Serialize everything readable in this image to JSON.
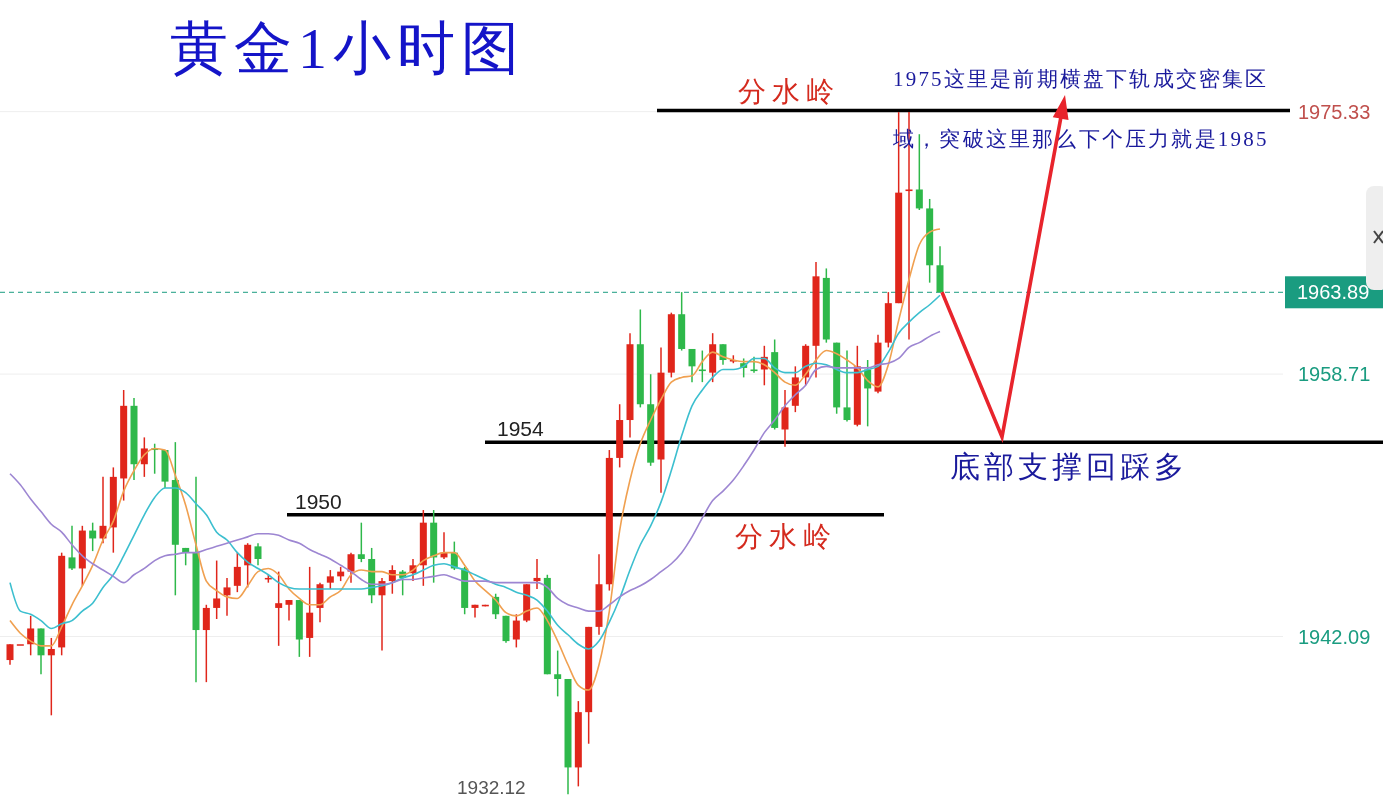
{
  "chart_data": {
    "type": "candlestick",
    "title": "黄金1小时图",
    "categories": [
      null,
      null,
      null,
      null,
      null,
      null,
      null,
      null,
      null,
      null,
      null,
      null,
      null,
      null,
      null,
      null,
      null,
      null,
      null,
      null,
      null,
      null,
      null,
      null,
      null,
      null,
      null,
      null,
      null,
      null,
      null,
      null,
      null,
      null,
      null,
      null,
      null,
      null,
      null,
      null,
      null,
      null,
      null,
      null,
      null,
      null,
      null,
      null,
      null,
      null,
      null,
      null,
      null,
      null,
      null,
      null,
      null,
      null,
      null,
      null,
      null,
      null,
      null,
      null,
      null,
      null,
      null,
      null,
      null,
      null,
      null,
      null,
      null,
      null,
      null,
      null,
      null,
      null,
      null,
      null,
      null,
      null,
      null,
      null,
      null,
      null,
      null,
      null,
      null,
      null,
      null
    ],
    "ohlc": [
      [
        1940.6,
        1941.6,
        1940.3,
        1941.6
      ],
      [
        1941.6,
        1941.6,
        1941.6,
        1941.6
      ],
      [
        1941.6,
        1943.4,
        1940.9,
        1942.6
      ],
      [
        1942.6,
        1942.6,
        1939.7,
        1940.9
      ],
      [
        1940.9,
        1942.0,
        1937.1,
        1941.3
      ],
      [
        1941.4,
        1947.4,
        1940.9,
        1947.2
      ],
      [
        1947.1,
        1949.1,
        1946.3,
        1946.4
      ],
      [
        1946.4,
        1949.1,
        1945.3,
        1948.8
      ],
      [
        1948.8,
        1949.3,
        1947.5,
        1948.3
      ],
      [
        1948.3,
        1952.2,
        1948.0,
        1949.1
      ],
      [
        1949.0,
        1952.8,
        1947.4,
        1952.2
      ],
      [
        1952.1,
        1957.7,
        1950.7,
        1956.7
      ],
      [
        1956.7,
        1957.2,
        1952.0,
        1953.0
      ],
      [
        1953.0,
        1954.7,
        1952.2,
        1954.0
      ],
      [
        1954.0,
        1954.3,
        1952.4,
        1953.9
      ],
      [
        1953.9,
        1953.9,
        1951.5,
        1951.9
      ],
      [
        1952.0,
        1954.4,
        1944.7,
        1947.9
      ],
      [
        1947.7,
        1947.7,
        1946.6,
        1947.4
      ],
      [
        1947.4,
        1952.2,
        1939.2,
        1942.5
      ],
      [
        1942.5,
        1944.1,
        1939.2,
        1943.9
      ],
      [
        1943.9,
        1946.9,
        1943.2,
        1944.5
      ],
      [
        1944.7,
        1945.8,
        1943.4,
        1945.2
      ],
      [
        1945.3,
        1947.4,
        1944.9,
        1946.5
      ],
      [
        1946.6,
        1948.0,
        1945.2,
        1947.9
      ],
      [
        1947.8,
        1948.0,
        1946.6,
        1947.0
      ],
      [
        1945.8,
        1946.0,
        1945.5,
        1945.8
      ],
      [
        1943.9,
        1946.2,
        1941.5,
        1944.2
      ],
      [
        1944.1,
        1944.4,
        1943.1,
        1944.4
      ],
      [
        1944.4,
        1944.4,
        1940.8,
        1941.9
      ],
      [
        1942.0,
        1946.5,
        1940.8,
        1943.6
      ],
      [
        1943.9,
        1945.5,
        1943.0,
        1945.4
      ],
      [
        1945.5,
        1946.3,
        1945.1,
        1945.9
      ],
      [
        1945.9,
        1946.5,
        1945.6,
        1946.2
      ],
      [
        1946.2,
        1947.4,
        1945.5,
        1947.3
      ],
      [
        1947.3,
        1949.3,
        1946.8,
        1947.0
      ],
      [
        1947.0,
        1947.7,
        1944.2,
        1944.7
      ],
      [
        1944.7,
        1945.8,
        1941.2,
        1945.6
      ],
      [
        1945.6,
        1946.6,
        1944.8,
        1946.3
      ],
      [
        1946.2,
        1946.3,
        1944.7,
        1945.8
      ],
      [
        1946.1,
        1947.0,
        1945.6,
        1946.6
      ],
      [
        1946.6,
        1950.1,
        1945.3,
        1949.3
      ],
      [
        1949.3,
        1950.1,
        1945.5,
        1947.1
      ],
      [
        1947.1,
        1948.7,
        1947.0,
        1947.4
      ],
      [
        1947.4,
        1948.1,
        1946.3,
        1946.4
      ],
      [
        1946.4,
        1946.5,
        1943.5,
        1943.9
      ],
      [
        1943.9,
        1944.1,
        1943.3,
        1944.1
      ],
      [
        1944.0,
        1944.1,
        1944.0,
        1944.1
      ],
      [
        1944.6,
        1944.8,
        1943.2,
        1943.5
      ],
      [
        1943.4,
        1943.4,
        1941.7,
        1941.8
      ],
      [
        1941.9,
        1943.5,
        1941.4,
        1943.1
      ],
      [
        1943.1,
        1945.4,
        1943.0,
        1945.4
      ],
      [
        1945.6,
        1947.0,
        1945.1,
        1945.8
      ],
      [
        1945.8,
        1946.0,
        1939.7,
        1939.7
      ],
      [
        1939.7,
        1941.2,
        1938.3,
        1939.4
      ],
      [
        1939.4,
        1939.4,
        1932.1,
        1933.8
      ],
      [
        1933.8,
        1938.0,
        1932.6,
        1937.3
      ],
      [
        1937.3,
        1942.7,
        1935.3,
        1942.7
      ],
      [
        1942.7,
        1947.3,
        1942.2,
        1945.4
      ],
      [
        1945.4,
        1953.9,
        1945.0,
        1953.4
      ],
      [
        1953.4,
        1956.8,
        1952.8,
        1955.8
      ],
      [
        1955.8,
        1961.3,
        1954.7,
        1960.6
      ],
      [
        1960.6,
        1962.8,
        1956.6,
        1956.8
      ],
      [
        1956.8,
        1958.7,
        1952.9,
        1953.1
      ],
      [
        1953.3,
        1960.4,
        1951.2,
        1958.8
      ],
      [
        1958.8,
        1962.6,
        1958.5,
        1962.5
      ],
      [
        1962.5,
        1963.9,
        1960.2,
        1960.3
      ],
      [
        1960.3,
        1960.3,
        1958.2,
        1959.2
      ],
      [
        1959.0,
        1960.2,
        1958.2,
        1958.9
      ],
      [
        1958.8,
        1961.3,
        1958.2,
        1960.6
      ],
      [
        1960.6,
        1960.6,
        1959.3,
        1959.6
      ],
      [
        1959.6,
        1959.9,
        1959.4,
        1959.6
      ],
      [
        1959.4,
        1959.7,
        1958.5,
        1959.1
      ],
      [
        1959.0,
        1959.8,
        1958.8,
        1958.9
      ],
      [
        1959.0,
        1960.5,
        1958.0,
        1959.8
      ],
      [
        1960.1,
        1960.9,
        1955.2,
        1955.3
      ],
      [
        1955.2,
        1957.7,
        1954.1,
        1956.6
      ],
      [
        1956.7,
        1959.2,
        1956.3,
        1958.5
      ],
      [
        1958.5,
        1960.6,
        1958.0,
        1960.5
      ],
      [
        1960.5,
        1965.8,
        1958.5,
        1964.9
      ],
      [
        1964.8,
        1965.4,
        1960.7,
        1960.9
      ],
      [
        1960.7,
        1960.7,
        1956.2,
        1956.6
      ],
      [
        1956.6,
        1960.2,
        1955.7,
        1955.8
      ],
      [
        1955.5,
        1960.5,
        1955.4,
        1959.2
      ],
      [
        1959.0,
        1959.6,
        1955.4,
        1957.8
      ],
      [
        1957.6,
        1961.2,
        1957.5,
        1960.7
      ],
      [
        1960.7,
        1963.9,
        1960.4,
        1963.2
      ],
      [
        1963.2,
        1975.3,
        1963.2,
        1970.2
      ],
      [
        1970.3,
        1975.3,
        1960.9,
        1970.4
      ],
      [
        1970.4,
        1973.9,
        1969.1,
        1969.2
      ],
      [
        1969.2,
        1969.8,
        1964.5,
        1965.6
      ],
      [
        1965.6,
        1966.8,
        1963.9,
        1963.9
      ]
    ],
    "series": [
      {
        "type": "line",
        "color": "#f0a050",
        "values": [
          1943.1,
          1942.3,
          1941.8,
          1941.5,
          1941.5,
          1942.7,
          1944.1,
          1945.3,
          1946.6,
          1948.2,
          1949.4,
          1951.3,
          1952.6,
          1953.6,
          1954.0,
          1953.9,
          1952.3,
          1950.4,
          1947.9,
          1945.6,
          1945.0,
          1944.6,
          1944.5,
          1945.3,
          1946.2,
          1946.4,
          1946.0,
          1945.1,
          1944.5,
          1944.1,
          1944.1,
          1944.6,
          1945.0,
          1946.0,
          1946.3,
          1946.2,
          1946.2,
          1946.0,
          1946.0,
          1946.3,
          1946.9,
          1947.2,
          1947.4,
          1947.4,
          1946.6,
          1945.6,
          1945.0,
          1944.4,
          1943.6,
          1943.4,
          1943.7,
          1943.9,
          1943.1,
          1941.8,
          1940.3,
          1939.0,
          1938.7,
          1940.3,
          1943.7,
          1948.8,
          1952.0,
          1954.3,
          1955.8,
          1957.1,
          1958.2,
          1958.5,
          1958.6,
          1959.5,
          1960.1,
          1959.8,
          1959.6,
          1959.5,
          1959.5,
          1959.3,
          1958.8,
          1958.2,
          1958.0,
          1958.7,
          1959.6,
          1960.2,
          1960.0,
          1959.6,
          1959.1,
          1958.3,
          1957.9,
          1959.3,
          1962.1,
          1964.7,
          1966.9,
          1967.7,
          1967.9
        ]
      },
      {
        "type": "line",
        "color": "#3cbfcf",
        "values": [
          1945.5,
          1943.7,
          1943.5,
          1943.1,
          1942.6,
          1942.9,
          1943.1,
          1943.7,
          1944.2,
          1945.2,
          1946.0,
          1947.2,
          1948.5,
          1949.8,
          1950.9,
          1951.5,
          1951.5,
          1951.2,
          1950.5,
          1949.8,
          1948.7,
          1948.2,
          1947.4,
          1946.8,
          1946.4,
          1946.0,
          1945.5,
          1945.2,
          1945.1,
          1945.1,
          1945.1,
          1945.1,
          1945.1,
          1945.1,
          1945.1,
          1945.2,
          1945.3,
          1945.5,
          1945.8,
          1946.0,
          1946.3,
          1946.6,
          1946.7,
          1946.5,
          1946.3,
          1946.0,
          1945.7,
          1945.4,
          1945.2,
          1944.9,
          1944.7,
          1944.4,
          1943.7,
          1942.8,
          1942.2,
          1941.6,
          1941.3,
          1941.8,
          1943.0,
          1944.5,
          1946.3,
          1947.9,
          1949.1,
          1950.6,
          1952.6,
          1954.8,
          1956.7,
          1957.7,
          1958.5,
          1959.0,
          1959.0,
          1959.2,
          1959.7,
          1959.7,
          1959.1,
          1958.8,
          1958.8,
          1959.2,
          1959.4,
          1959.3,
          1959.0,
          1958.8,
          1958.8,
          1959.0,
          1959.2,
          1960.1,
          1961.3,
          1962.0,
          1962.6,
          1963.1,
          1963.7
        ]
      },
      {
        "type": "line",
        "color": "#9d86d2",
        "values": [
          1952.4,
          1951.7,
          1950.8,
          1950.0,
          1949.2,
          1948.7,
          1947.9,
          1947.2,
          1946.7,
          1946.3,
          1945.9,
          1945.5,
          1946.0,
          1946.4,
          1946.9,
          1947.2,
          1947.3,
          1947.4,
          1947.4,
          1947.6,
          1947.8,
          1948.0,
          1948.2,
          1948.4,
          1948.6,
          1948.6,
          1948.5,
          1948.2,
          1948.0,
          1947.6,
          1947.3,
          1947.0,
          1946.6,
          1946.2,
          1945.7,
          1945.4,
          1945.4,
          1945.5,
          1945.7,
          1945.7,
          1945.8,
          1945.9,
          1946.0,
          1945.8,
          1945.6,
          1945.6,
          1945.6,
          1945.5,
          1945.5,
          1945.5,
          1945.5,
          1945.5,
          1945.2,
          1944.5,
          1944.1,
          1943.9,
          1943.7,
          1943.7,
          1944.1,
          1944.6,
          1945.0,
          1945.3,
          1945.7,
          1946.2,
          1946.7,
          1947.4,
          1948.4,
          1949.6,
          1950.7,
          1951.3,
          1952.0,
          1952.9,
          1953.9,
          1955.0,
          1955.8,
          1956.7,
          1957.4,
          1958.0,
          1959.0,
          1959.2,
          1959.1,
          1959.1,
          1959.1,
          1959.1,
          1959.3,
          1959.4,
          1959.7,
          1960.4,
          1960.7,
          1961.1,
          1961.4
        ]
      }
    ],
    "ylim": [
      1931.8,
      1982.4
    ],
    "yticks": [
      1975.33,
      1958.71,
      1942.09
    ],
    "tick_labels": "y",
    "grid": "y",
    "ref_lines": [
      {
        "axis": "y",
        "value": 1975.4,
        "label": "分水岭",
        "color": "#000000"
      },
      {
        "axis": "y",
        "value": 1954.4,
        "label": "1954",
        "color": "#000000"
      },
      {
        "axis": "y",
        "value": 1949.8,
        "label": "1950",
        "color": "#000000"
      },
      {
        "axis": "y",
        "value": 1963.89,
        "label": "1963.89",
        "color": "#1a9c80",
        "line_style": "dashed"
      }
    ],
    "annotations": [
      "1975这里是前期横盘下轨成交密集区域，突破这里那么下个压力就是1985",
      "底部支撑回踩多",
      "分水岭",
      "1932.12"
    ]
  }
}
